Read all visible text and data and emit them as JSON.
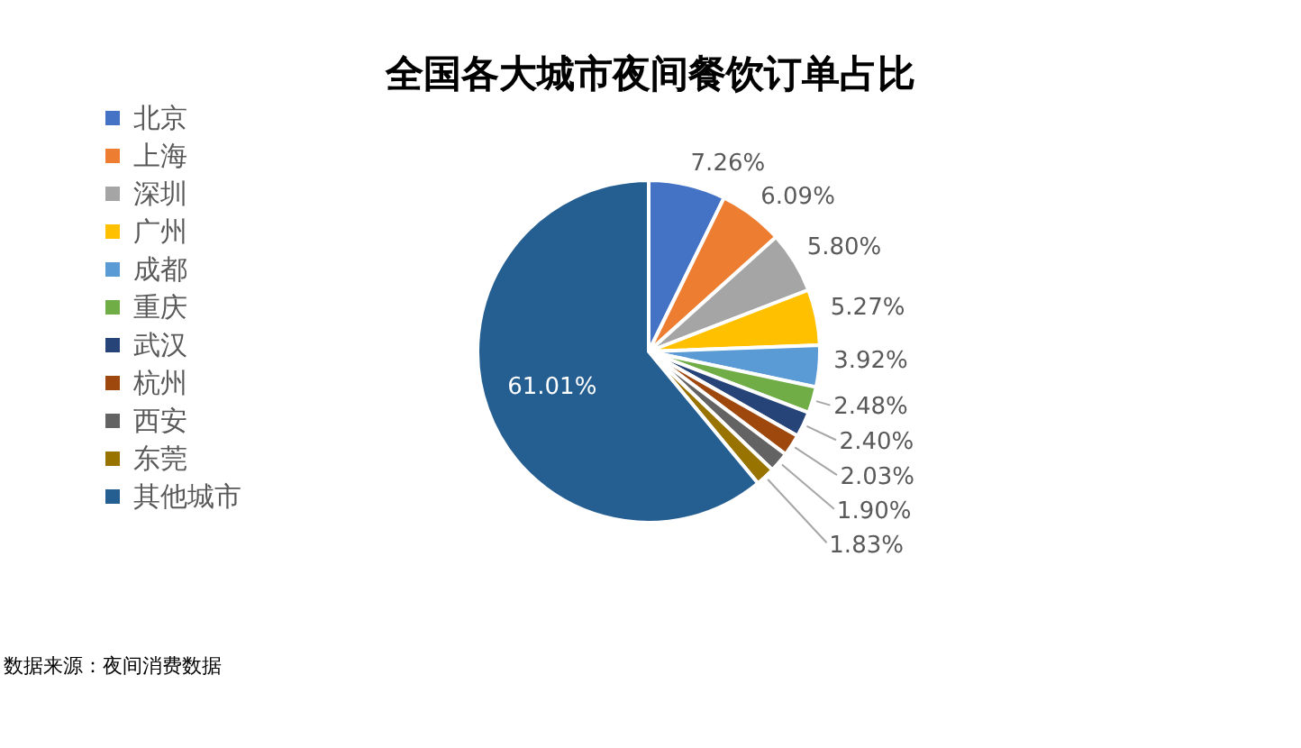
{
  "chart_data": {
    "type": "pie",
    "title": "全国各大城市夜间餐饮订单占比",
    "categories": [
      "北京",
      "上海",
      "深圳",
      "广州",
      "成都",
      "重庆",
      "武汉",
      "杭州",
      "西安",
      "东莞",
      "其他城市"
    ],
    "values": [
      7.26,
      6.09,
      5.8,
      5.27,
      3.92,
      2.48,
      2.4,
      2.03,
      1.9,
      1.83,
      61.01
    ],
    "value_labels": [
      "7.26%",
      "6.09%",
      "5.80%",
      "5.27%",
      "3.92%",
      "2.48%",
      "2.40%",
      "2.03%",
      "1.90%",
      "1.83%",
      "61.01%"
    ],
    "colors": [
      "#4472c4",
      "#ed7d31",
      "#a5a5a5",
      "#ffc000",
      "#5b9bd5",
      "#70ad47",
      "#264478",
      "#9e480e",
      "#636363",
      "#997300",
      "#255e91"
    ],
    "legend": "left",
    "annotations": [
      "数据来源：夜间消费数据"
    ]
  }
}
